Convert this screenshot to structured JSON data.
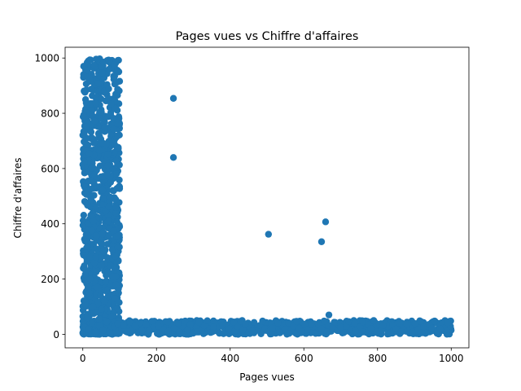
{
  "chart_data": {
    "type": "scatter",
    "title": "Pages vues vs Chiffre d'affaires",
    "xlabel": "Pages vues",
    "ylabel": "Chiffre d'affaires",
    "xlim": [
      -48,
      1048
    ],
    "ylim": [
      -49,
      1039
    ],
    "xticks": [
      0,
      200,
      400,
      600,
      800,
      1000
    ],
    "yticks": [
      0,
      200,
      400,
      600,
      800,
      1000
    ],
    "grid": false,
    "marker_color": "#1f77b4",
    "points_low_revenue": [
      [
        0,
        5
      ],
      [
        2,
        38
      ],
      [
        4,
        12
      ],
      [
        6,
        44
      ],
      [
        8,
        21
      ],
      [
        10,
        3
      ],
      [
        12,
        30
      ],
      [
        14,
        48
      ],
      [
        16,
        9
      ],
      [
        18,
        26
      ],
      [
        20,
        41
      ],
      [
        22,
        15
      ],
      [
        24,
        2
      ],
      [
        26,
        35
      ],
      [
        28,
        19
      ],
      [
        30,
        47
      ],
      [
        32,
        8
      ],
      [
        34,
        28
      ],
      [
        36,
        40
      ],
      [
        38,
        13
      ],
      [
        40,
        33
      ],
      [
        42,
        1
      ],
      [
        44,
        24
      ],
      [
        46,
        45
      ],
      [
        48,
        11
      ],
      [
        50,
        37
      ],
      [
        52,
        20
      ],
      [
        54,
        6
      ],
      [
        56,
        42
      ],
      [
        58,
        29
      ],
      [
        60,
        16
      ],
      [
        62,
        49
      ],
      [
        64,
        4
      ],
      [
        66,
        32
      ],
      [
        68,
        23
      ],
      [
        70,
        39
      ],
      [
        72,
        10
      ],
      [
        74,
        46
      ],
      [
        76,
        18
      ],
      [
        78,
        27
      ],
      [
        80,
        0
      ],
      [
        82,
        36
      ],
      [
        84,
        14
      ],
      [
        86,
        43
      ],
      [
        88,
        25
      ],
      [
        90,
        7
      ],
      [
        92,
        34
      ],
      [
        94,
        22
      ],
      [
        96,
        48
      ],
      [
        98,
        12
      ],
      [
        5,
        25
      ],
      [
        15,
        18
      ],
      [
        25,
        42
      ],
      [
        35,
        7
      ],
      [
        45,
        30
      ],
      [
        55,
        15
      ],
      [
        65,
        45
      ],
      [
        75,
        3
      ],
      [
        85,
        28
      ],
      [
        95,
        38
      ],
      [
        12,
        60
      ],
      [
        30,
        75
      ],
      [
        50,
        90
      ],
      [
        70,
        110
      ],
      [
        88,
        130
      ],
      [
        18,
        150
      ],
      [
        40,
        170
      ],
      [
        62,
        190
      ],
      [
        82,
        210
      ],
      [
        8,
        230
      ],
      [
        28,
        100
      ],
      [
        48,
        140
      ],
      [
        68,
        160
      ],
      [
        90,
        180
      ],
      [
        20,
        200
      ],
      [
        36,
        80
      ],
      [
        58,
        120
      ],
      [
        78,
        65
      ],
      [
        94,
        95
      ],
      [
        44,
        55
      ],
      [
        105,
        20
      ],
      [
        112,
        38
      ],
      [
        120,
        8
      ],
      [
        128,
        44
      ],
      [
        135,
        15
      ],
      [
        142,
        30
      ],
      [
        150,
        5
      ],
      [
        158,
        41
      ],
      [
        165,
        22
      ],
      [
        172,
        35
      ],
      [
        180,
        12
      ],
      [
        188,
        47
      ],
      [
        195,
        27
      ],
      [
        202,
        3
      ],
      [
        210,
        39
      ],
      [
        218,
        18
      ],
      [
        225,
        46
      ],
      [
        232,
        10
      ],
      [
        240,
        33
      ],
      [
        248,
        24
      ],
      [
        255,
        42
      ],
      [
        262,
        7
      ],
      [
        270,
        29
      ],
      [
        278,
        48
      ],
      [
        285,
        16
      ],
      [
        292,
        36
      ],
      [
        300,
        4
      ],
      [
        308,
        25
      ],
      [
        315,
        44
      ],
      [
        322,
        13
      ],
      [
        330,
        31
      ],
      [
        338,
        49
      ],
      [
        345,
        20
      ],
      [
        352,
        9
      ],
      [
        360,
        38
      ],
      [
        368,
        26
      ],
      [
        375,
        45
      ],
      [
        382,
        2
      ],
      [
        390,
        34
      ],
      [
        398,
        19
      ],
      [
        405,
        41
      ],
      [
        412,
        11
      ],
      [
        420,
        28
      ],
      [
        428,
        47
      ],
      [
        435,
        17
      ],
      [
        442,
        37
      ],
      [
        450,
        6
      ],
      [
        458,
        23
      ],
      [
        465,
        43
      ],
      [
        472,
        14
      ],
      [
        480,
        32
      ],
      [
        488,
        48
      ],
      [
        495,
        21
      ],
      [
        505,
        10
      ],
      [
        512,
        39
      ],
      [
        520,
        26
      ],
      [
        528,
        45
      ],
      [
        535,
        5
      ],
      [
        542,
        33
      ],
      [
        550,
        18
      ],
      [
        558,
        42
      ],
      [
        565,
        12
      ],
      [
        572,
        30
      ],
      [
        580,
        47
      ],
      [
        588,
        22
      ],
      [
        595,
        8
      ],
      [
        602,
        37
      ],
      [
        610,
        16
      ],
      [
        618,
        44
      ],
      [
        625,
        27
      ],
      [
        632,
        3
      ],
      [
        640,
        35
      ],
      [
        648,
        20
      ],
      [
        655,
        48
      ],
      [
        662,
        9
      ],
      [
        670,
        31
      ],
      [
        678,
        24
      ],
      [
        685,
        43
      ],
      [
        692,
        13
      ],
      [
        700,
        38
      ],
      [
        708,
        6
      ],
      [
        715,
        29
      ],
      [
        722,
        46
      ],
      [
        730,
        17
      ],
      [
        738,
        40
      ],
      [
        745,
        2
      ],
      [
        752,
        26
      ],
      [
        760,
        45
      ],
      [
        768,
        11
      ],
      [
        775,
        34
      ],
      [
        782,
        21
      ],
      [
        790,
        49
      ],
      [
        798,
        7
      ],
      [
        805,
        36
      ],
      [
        812,
        15
      ],
      [
        820,
        42
      ],
      [
        828,
        28
      ],
      [
        835,
        4
      ],
      [
        842,
        33
      ],
      [
        850,
        19
      ],
      [
        858,
        47
      ],
      [
        865,
        10
      ],
      [
        872,
        30
      ],
      [
        880,
        44
      ],
      [
        888,
        24
      ],
      [
        895,
        8
      ],
      [
        902,
        39
      ],
      [
        910,
        18
      ],
      [
        918,
        46
      ],
      [
        925,
        27
      ],
      [
        932,
        5
      ],
      [
        940,
        35
      ],
      [
        948,
        22
      ],
      [
        955,
        48
      ],
      [
        962,
        12
      ],
      [
        970,
        31
      ],
      [
        978,
        41
      ],
      [
        985,
        25
      ],
      [
        992,
        16
      ],
      [
        998,
        29
      ],
      [
        110,
        32
      ],
      [
        160,
        14
      ],
      [
        205,
        29
      ],
      [
        260,
        40
      ],
      [
        310,
        8
      ],
      [
        355,
        27
      ],
      [
        410,
        44
      ],
      [
        460,
        12
      ],
      [
        515,
        22
      ],
      [
        560,
        3
      ],
      [
        620,
        38
      ],
      [
        668,
        70
      ],
      [
        700,
        25
      ],
      [
        760,
        8
      ],
      [
        815,
        31
      ],
      [
        860,
        40
      ],
      [
        920,
        6
      ],
      [
        970,
        20
      ],
      [
        230,
        45
      ],
      [
        380,
        33
      ],
      [
        530,
        41
      ],
      [
        740,
        12
      ],
      [
        880,
        35
      ],
      [
        990,
        42
      ]
    ],
    "points_outliers": [
      [
        246,
        854
      ],
      [
        246,
        640
      ],
      [
        504,
        362
      ],
      [
        648,
        335
      ],
      [
        659,
        407
      ]
    ]
  }
}
